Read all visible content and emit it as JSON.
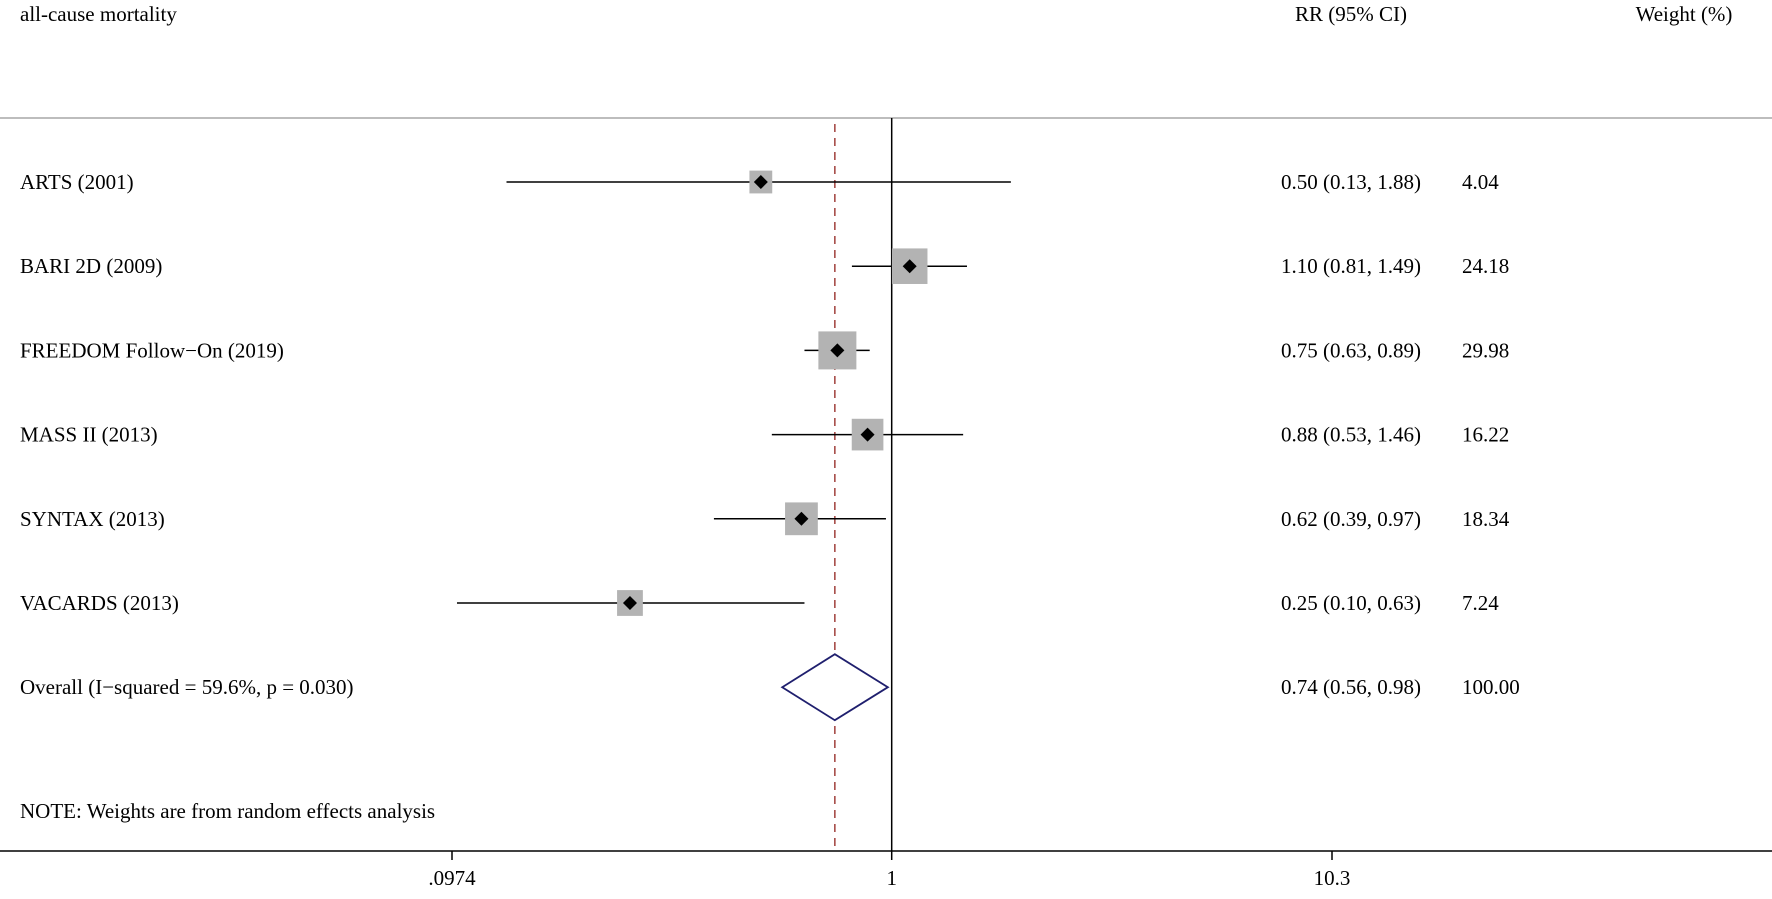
{
  "chart_data": {
    "type": "forest",
    "title": "all-cause mortality",
    "columns": {
      "estimate_header": "RR (95% CI)",
      "weight_header": "Weight (%)"
    },
    "scale": "log",
    "xlim": [
      0.0974,
      10.3
    ],
    "x_ticks": [
      {
        "value": 0.0974,
        "label": ".0974"
      },
      {
        "value": 1,
        "label": "1"
      },
      {
        "value": 10.3,
        "label": "10.3"
      }
    ],
    "null_line": 1,
    "studies": [
      {
        "label": "ARTS (2001)",
        "rr": 0.5,
        "lower": 0.13,
        "upper": 1.88,
        "ci_text": "0.50 (0.13, 1.88)",
        "weight": 4.04,
        "weight_text": "4.04"
      },
      {
        "label": "BARI 2D  (2009)",
        "rr": 1.1,
        "lower": 0.81,
        "upper": 1.49,
        "ci_text": "1.10 (0.81, 1.49)",
        "weight": 24.18,
        "weight_text": "24.18"
      },
      {
        "label": "FREEDOM Follow−On  (2019)",
        "rr": 0.75,
        "lower": 0.63,
        "upper": 0.89,
        "ci_text": "0.75 (0.63, 0.89)",
        "weight": 29.98,
        "weight_text": "29.98"
      },
      {
        "label": "MASS II  (2013)",
        "rr": 0.88,
        "lower": 0.53,
        "upper": 1.46,
        "ci_text": "0.88 (0.53, 1.46)",
        "weight": 16.22,
        "weight_text": "16.22"
      },
      {
        "label": "SYNTAX  (2013)",
        "rr": 0.62,
        "lower": 0.39,
        "upper": 0.97,
        "ci_text": "0.62 (0.39, 0.97)",
        "weight": 18.34,
        "weight_text": "18.34"
      },
      {
        "label": "VACARDS (2013)",
        "rr": 0.25,
        "lower": 0.1,
        "upper": 0.63,
        "ci_text": "0.25 (0.10, 0.63)",
        "weight": 7.24,
        "weight_text": "7.24"
      }
    ],
    "overall": {
      "label": "Overall  (I−squared = 59.6%, p = 0.030)",
      "rr": 0.74,
      "lower": 0.56,
      "upper": 0.98,
      "ci_text": "0.74 (0.56, 0.98)",
      "weight_text": "100.00"
    },
    "note": "NOTE: Weights are from random effects analysis",
    "colors": {
      "box": "#b3b3b3",
      "point": "#000000",
      "line": "#000000",
      "diamond": "#1f1f6e",
      "overall_line": "#a0403c"
    }
  }
}
